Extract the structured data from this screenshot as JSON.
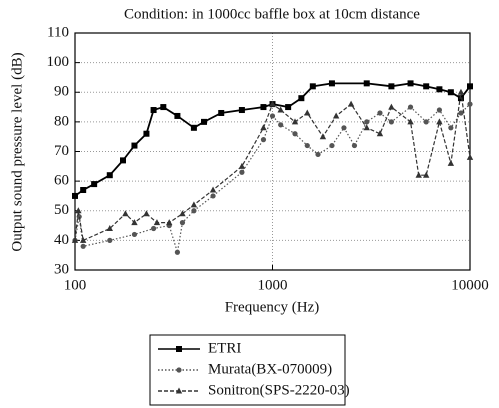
{
  "chart_data": {
    "type": "line",
    "title": "Condition: in 1000cc baffle box at 10cm distance",
    "x_label": "Frequency (Hz)",
    "y_label": "Output sound pressure level (dB)",
    "xscale": "log",
    "xlim": [
      100,
      10000
    ],
    "xticks": [
      100,
      1000,
      10000
    ],
    "ylim": [
      30,
      110
    ],
    "yticks": [
      30,
      40,
      50,
      60,
      70,
      80,
      90,
      100,
      110
    ],
    "grid": true,
    "legend": "bottom",
    "series": [
      {
        "name": "ETRI",
        "color": "#000000",
        "marker": "square",
        "line_style": "solid",
        "x": [
          100,
          110,
          125,
          150,
          175,
          200,
          230,
          250,
          280,
          330,
          400,
          450,
          550,
          700,
          900,
          1000,
          1200,
          1400,
          1600,
          2000,
          3000,
          4000,
          5000,
          6000,
          7000,
          8000,
          9000,
          10000
        ],
        "values": [
          55,
          57,
          59,
          62,
          67,
          72,
          76,
          84,
          85,
          82,
          78,
          80,
          83,
          84,
          85,
          86,
          85,
          88,
          92,
          93,
          93,
          92,
          93,
          92,
          91,
          90,
          88,
          92
        ]
      },
      {
        "name": "Murata(BX-070009)",
        "color": "#555555",
        "marker": "circle",
        "line_style": "dotted",
        "x": [
          100,
          105,
          110,
          150,
          200,
          250,
          300,
          330,
          350,
          400,
          500,
          700,
          900,
          1000,
          1100,
          1300,
          1500,
          1700,
          2000,
          2300,
          2600,
          3000,
          3500,
          4000,
          5000,
          6000,
          7000,
          8000,
          9000,
          10000
        ],
        "values": [
          40,
          48,
          38,
          40,
          42,
          44,
          45,
          36,
          46,
          50,
          55,
          63,
          74,
          82,
          79,
          76,
          72,
          69,
          72,
          78,
          72,
          80,
          83,
          80,
          85,
          80,
          84,
          78,
          83,
          86
        ]
      },
      {
        "name": "Sonitron(SPS-2220-03)",
        "color": "#333333",
        "marker": "triangle",
        "line_style": "dashed",
        "x": [
          100,
          104,
          110,
          150,
          180,
          200,
          230,
          260,
          300,
          350,
          400,
          500,
          700,
          900,
          1000,
          1100,
          1300,
          1500,
          1800,
          2100,
          2500,
          3000,
          3500,
          4000,
          5000,
          5500,
          6000,
          7000,
          8000,
          9000,
          10000
        ],
        "values": [
          40,
          50,
          40,
          44,
          49,
          46,
          49,
          46,
          46,
          49,
          52,
          57,
          65,
          78,
          86,
          84,
          80,
          83,
          75,
          82,
          86,
          78,
          76,
          85,
          80,
          62,
          62,
          80,
          66,
          90,
          68
        ]
      }
    ]
  }
}
